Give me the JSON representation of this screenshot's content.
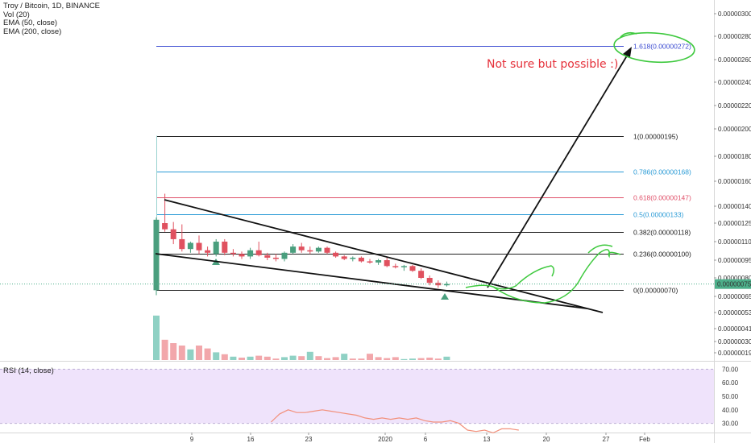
{
  "legend": {
    "title": "Troy / Bitcoin, 1D, BINANCE",
    "vol": "Vol (20)",
    "ema50": "EMA (50, close)",
    "ema200": "EMA (200, close)"
  },
  "rsi_label": "RSI (14, close)",
  "annotation_text": "Not sure but possible :)",
  "colors": {
    "up": "#4a9f7e",
    "down": "#e0515f",
    "vol_up": "#8fd1c4",
    "vol_down": "#f2a7ab",
    "annotation": "#e5303a",
    "green_marker": "#3ec93e",
    "price_badge": "#4caf8a",
    "rsi_band": "#efe3fb",
    "rsi_line": "#f2907b"
  },
  "chart_data": {
    "type": "candlestick",
    "symbol": "TROYBTC",
    "interval": "1D",
    "y_ticks": [
      "0.00000300",
      "0.00000280",
      "0.00000260",
      "0.00000240",
      "0.00000220",
      "0.00000200",
      "0.00000180",
      "0.00000160",
      "0.00000140",
      "0.00000125",
      "0.00000110",
      "0.00000095",
      "0.00000080",
      "0.00000065",
      "0.00000053",
      "0.00000041",
      "0.00000030",
      "0.00000019"
    ],
    "x_ticks": [
      "9",
      "16",
      "23",
      "2020",
      "6",
      "13",
      "20",
      "27",
      "Feb"
    ],
    "current_price": "0.00000075",
    "fib_levels": [
      {
        "ratio": "1.618",
        "price": "0.00000272",
        "label": "1.618(0.00000272)",
        "color": "#3b4bd1"
      },
      {
        "ratio": "1",
        "price": "0.00000195",
        "label": "1(0.00000195)",
        "color": "#222222"
      },
      {
        "ratio": "0.786",
        "price": "0.00000168",
        "label": "0.786(0.00000168)",
        "color": "#2b9bd6"
      },
      {
        "ratio": "0.618",
        "price": "0.00000147",
        "label": "0.618(0.00000147)",
        "color": "#e0516a"
      },
      {
        "ratio": "0.5",
        "price": "0.00000133",
        "label": "0.5(0.00000133)",
        "color": "#2b9bd6"
      },
      {
        "ratio": "0.382",
        "price": "0.00000118",
        "label": "0.382(0.00000118)",
        "color": "#222222"
      },
      {
        "ratio": "0.236",
        "price": "0.00000100",
        "label": "0.236(0.00000100)",
        "color": "#222222"
      },
      {
        "ratio": "0",
        "price": "0.00000070",
        "label": "0(0.00000070)",
        "color": "#222222"
      }
    ],
    "candles": [
      {
        "o": 70,
        "h": 130,
        "l": 66,
        "c": 128
      },
      {
        "o": 125,
        "h": 150,
        "l": 118,
        "c": 120
      },
      {
        "o": 120,
        "h": 126,
        "l": 108,
        "c": 112
      },
      {
        "o": 112,
        "h": 124,
        "l": 102,
        "c": 104
      },
      {
        "o": 104,
        "h": 110,
        "l": 101,
        "c": 109
      },
      {
        "o": 109,
        "h": 115,
        "l": 100,
        "c": 103
      },
      {
        "o": 103,
        "h": 106,
        "l": 98,
        "c": 101
      },
      {
        "o": 100,
        "h": 112,
        "l": 98,
        "c": 110
      },
      {
        "o": 110,
        "h": 112,
        "l": 99,
        "c": 101
      },
      {
        "o": 101,
        "h": 104,
        "l": 98,
        "c": 100
      },
      {
        "o": 100,
        "h": 102,
        "l": 96,
        "c": 98
      },
      {
        "o": 98,
        "h": 105,
        "l": 96,
        "c": 103
      },
      {
        "o": 103,
        "h": 110,
        "l": 98,
        "c": 99
      },
      {
        "o": 99,
        "h": 101,
        "l": 95,
        "c": 97
      },
      {
        "o": 97,
        "h": 100,
        "l": 94,
        "c": 96
      },
      {
        "o": 96,
        "h": 102,
        "l": 94,
        "c": 101
      },
      {
        "o": 101,
        "h": 108,
        "l": 100,
        "c": 106
      },
      {
        "o": 106,
        "h": 109,
        "l": 101,
        "c": 103
      },
      {
        "o": 103,
        "h": 106,
        "l": 100,
        "c": 102
      },
      {
        "o": 102,
        "h": 106,
        "l": 101,
        "c": 105
      },
      {
        "o": 105,
        "h": 106,
        "l": 100,
        "c": 101
      },
      {
        "o": 101,
        "h": 102,
        "l": 97,
        "c": 98
      },
      {
        "o": 98,
        "h": 99,
        "l": 95,
        "c": 96
      },
      {
        "o": 96,
        "h": 98,
        "l": 94,
        "c": 97
      },
      {
        "o": 97,
        "h": 98,
        "l": 93,
        "c": 94
      },
      {
        "o": 94,
        "h": 96,
        "l": 92,
        "c": 93
      },
      {
        "o": 93,
        "h": 96,
        "l": 91,
        "c": 95
      },
      {
        "o": 95,
        "h": 97,
        "l": 89,
        "c": 90
      },
      {
        "o": 90,
        "h": 92,
        "l": 88,
        "c": 89
      },
      {
        "o": 89,
        "h": 91,
        "l": 86,
        "c": 90
      },
      {
        "o": 90,
        "h": 91,
        "l": 85,
        "c": 86
      },
      {
        "o": 86,
        "h": 88,
        "l": 79,
        "c": 80
      },
      {
        "o": 80,
        "h": 82,
        "l": 74,
        "c": 76
      },
      {
        "o": 76,
        "h": 78,
        "l": 72,
        "c": 74
      },
      {
        "o": 74,
        "h": 77,
        "l": 73,
        "c": 75
      }
    ],
    "volume": [
      {
        "v": 92,
        "up": true
      },
      {
        "v": 42,
        "up": false
      },
      {
        "v": 35,
        "up": false
      },
      {
        "v": 30,
        "up": false
      },
      {
        "v": 22,
        "up": true
      },
      {
        "v": 30,
        "up": false
      },
      {
        "v": 24,
        "up": false
      },
      {
        "v": 16,
        "up": true
      },
      {
        "v": 12,
        "up": false
      },
      {
        "v": 7,
        "up": true
      },
      {
        "v": 5,
        "up": false
      },
      {
        "v": 7,
        "up": true
      },
      {
        "v": 9,
        "up": false
      },
      {
        "v": 7,
        "up": false
      },
      {
        "v": 3,
        "up": false
      },
      {
        "v": 6,
        "up": true
      },
      {
        "v": 9,
        "up": true
      },
      {
        "v": 8,
        "up": false
      },
      {
        "v": 17,
        "up": true
      },
      {
        "v": 8,
        "up": false
      },
      {
        "v": 4,
        "up": false
      },
      {
        "v": 6,
        "up": false
      },
      {
        "v": 13,
        "up": true
      },
      {
        "v": 3,
        "up": false
      },
      {
        "v": 3,
        "up": false
      },
      {
        "v": 13,
        "up": false
      },
      {
        "v": 6,
        "up": false
      },
      {
        "v": 4,
        "up": false
      },
      {
        "v": 6,
        "up": false
      },
      {
        "v": 2,
        "up": true
      },
      {
        "v": 3,
        "up": true
      },
      {
        "v": 4,
        "up": false
      },
      {
        "v": 5,
        "up": false
      },
      {
        "v": 3,
        "up": false
      },
      {
        "v": 7,
        "up": true
      }
    ],
    "rsi_ticks": [
      "70.00",
      "60.00",
      "50.00",
      "40.00",
      "30.00"
    ],
    "rsi_values": [
      31,
      37,
      40,
      38,
      38,
      39,
      40,
      39,
      38,
      37,
      36,
      34,
      33,
      34,
      33,
      34,
      33,
      34,
      32,
      31,
      31,
      32,
      30,
      25,
      24,
      25,
      23,
      26,
      26,
      25
    ],
    "rsi_band": [
      30,
      70
    ]
  }
}
